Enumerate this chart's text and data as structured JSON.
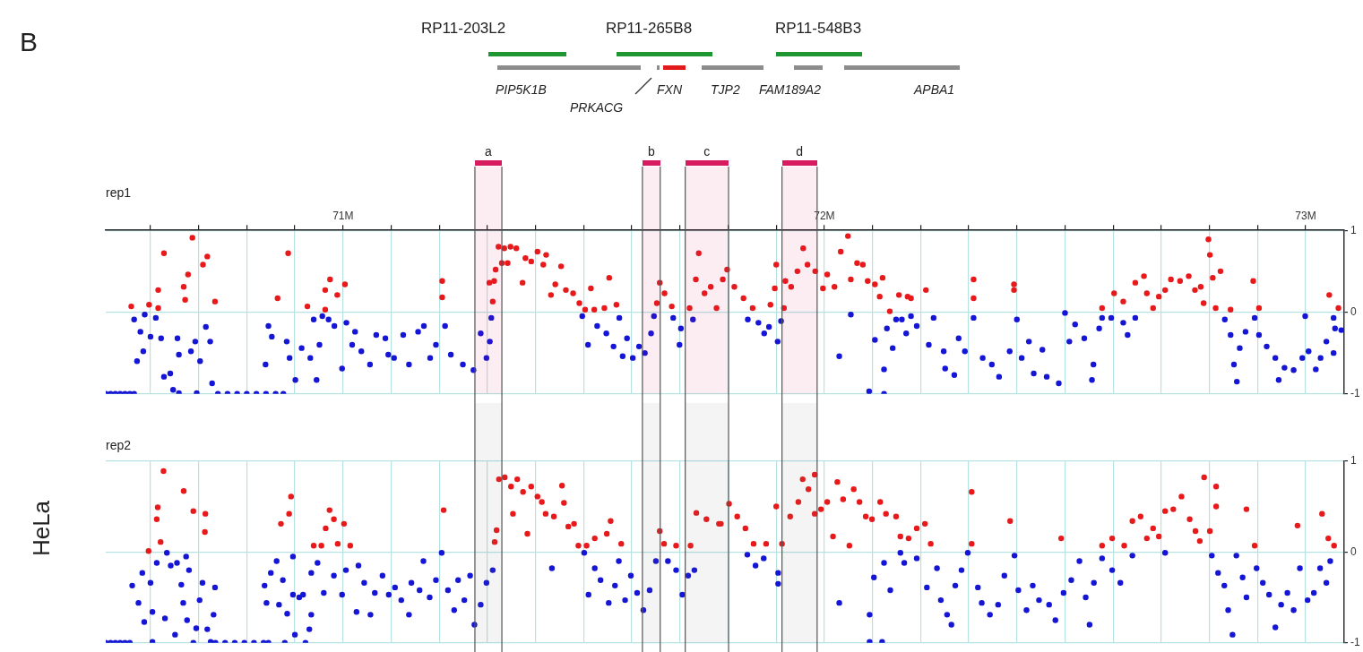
{
  "chart_data": [
    {
      "type": "scatter",
      "title": "rep1",
      "ylabel": "HeLa",
      "marker": "circle",
      "grid": true,
      "annotations": [
        "B",
        "RP11-203L2",
        "RP11-265B8",
        "RP11-548B3",
        "PIP5K1B",
        "PRKACG",
        "FXN",
        "TJP2",
        "FAM189A2",
        "APBA1"
      ],
      "xlim": [
        70.507,
        73.08
      ],
      "xticks": [
        {
          "value": 70.6,
          "label": null
        },
        {
          "value": 70.7,
          "label": null
        },
        {
          "value": 70.8,
          "label": null
        },
        {
          "value": 70.9,
          "label": null
        },
        {
          "value": 71,
          "label": "71M"
        },
        {
          "value": 71.1,
          "label": null
        },
        {
          "value": 71.2,
          "label": null
        },
        {
          "value": 71.3,
          "label": null
        },
        {
          "value": 71.4,
          "label": null
        },
        {
          "value": 71.5,
          "label": null
        },
        {
          "value": 71.6,
          "label": null
        },
        {
          "value": 71.7,
          "label": null
        },
        {
          "value": 71.8,
          "label": null
        },
        {
          "value": 71.9,
          "label": null
        },
        {
          "value": 72,
          "label": "72M"
        },
        {
          "value": 72.1,
          "label": null
        },
        {
          "value": 72.2,
          "label": null
        },
        {
          "value": 72.3,
          "label": null
        },
        {
          "value": 72.4,
          "label": null
        },
        {
          "value": 72.5,
          "label": null
        },
        {
          "value": 72.6,
          "label": null
        },
        {
          "value": 72.7,
          "label": null
        },
        {
          "value": 72.8,
          "label": null
        },
        {
          "value": 72.9,
          "label": null
        },
        {
          "value": 73,
          "label": "73M"
        }
      ],
      "ylim": [
        -1,
        1
      ],
      "yticks": [
        -1,
        0,
        1
      ],
      "bands": [
        {
          "axis": "x",
          "from": 71.274,
          "to": 71.33,
          "label": "a",
          "color": "#d81b60"
        },
        {
          "axis": "x",
          "from": 71.622,
          "to": 71.659,
          "label": "b",
          "color": "#d81b60"
        },
        {
          "axis": "x",
          "from": 71.711,
          "to": 71.801,
          "label": "c",
          "color": "#d81b60"
        },
        {
          "axis": "x",
          "from": 71.912,
          "to": 71.985,
          "label": "d",
          "color": "#d81b60"
        }
      ],
      "series": [
        {
          "color": "#e8191b",
          "x": [
            70.56,
            70.597,
            70.616,
            70.616,
            70.628,
            70.669,
            70.672,
            70.678,
            70.687,
            70.709,
            70.718,
            70.734,
            70.864,
            70.886,
            70.926,
            70.963,
            70.963,
            70.973,
            70.988,
            71.004,
            71.206,
            71.206,
            71.311,
            71.314,
            71.317,
            71.33,
            71.304,
            71.323,
            71.335,
            71.348,
            71.36,
            71.342,
            71.373,
            71.379,
            71.391,
            71.404,
            71.416,
            71.422,
            71.432,
            71.441,
            71.453,
            71.463,
            71.478,
            71.491,
            71.503,
            71.515,
            71.522,
            71.543,
            71.553,
            71.568,
            71.658,
            71.652,
            71.668,
            71.683,
            71.72,
            71.733,
            71.739,
            71.751,
            71.764,
            71.776,
            71.789,
            71.798,
            71.813,
            71.832,
            71.851,
            71.888,
            71.897,
            71.9,
            71.916,
            71.919,
            71.931,
            71.944,
            71.956,
            71.965,
            71.981,
            71.997,
            72.006,
            72.021,
            72.034,
            72.049,
            72.055,
            72.068,
            72.08,
            72.09,
            72.105,
            72.115,
            72.121,
            72.136,
            72.155,
            72.173,
            72.18,
            72.211,
            72.31,
            72.31,
            72.394,
            72.394,
            72.577,
            72.602,
            72.621,
            72.646,
            72.664,
            72.67,
            72.683,
            72.695,
            72.708,
            72.72,
            72.739,
            72.757,
            72.77,
            72.782,
            72.788,
            72.798,
            72.801,
            72.807,
            72.813,
            72.823,
            72.844,
            72.891,
            72.903,
            73.049,
            73.068
          ],
          "values": [
            0.07,
            0.09,
            0.05,
            0.27,
            0.72,
            0.31,
            0.15,
            0.46,
            0.91,
            0.58,
            0.68,
            0.13,
            0.17,
            0.72,
            0.07,
            0.03,
            0.27,
            0.4,
            0.21,
            0.34,
            0.38,
            0.18,
            0.13,
            0.38,
            0.52,
            0.6,
            0.36,
            0.8,
            0.78,
            0.8,
            0.78,
            0.6,
            0.36,
            0.66,
            0.62,
            0.74,
            0.58,
            0.7,
            0.21,
            0.34,
            0.56,
            0.27,
            0.23,
            0.11,
            0.03,
            0.29,
            0.03,
            0.05,
            0.42,
            0.09,
            0.36,
            0.11,
            0.23,
            0.07,
            0.05,
            0.4,
            0.72,
            0.23,
            0.31,
            0.05,
            0.4,
            0.52,
            0.31,
            0.17,
            0.05,
            0.09,
            0.29,
            0.58,
            0.05,
            0.38,
            0.31,
            0.5,
            0.78,
            0.58,
            0.5,
            0.29,
            0.46,
            0.31,
            0.74,
            0.93,
            0.4,
            0.6,
            0.58,
            0.38,
            0.34,
            0.19,
            0.42,
            0.01,
            0.21,
            0.19,
            0.17,
            0.27,
            0.4,
            0.17,
            0.34,
            0.27,
            0.05,
            0.23,
            0.13,
            0.36,
            0.44,
            0.23,
            0.05,
            0.19,
            0.27,
            0.4,
            0.38,
            0.44,
            0.27,
            0.31,
            0.11,
            0.89,
            0.7,
            0.42,
            0.05,
            0.5,
            0.03,
            0.38,
            0.05,
            0.21,
            0.05
          ]
        },
        {
          "color": "#1515d6",
          "x": [
            70.507,
            70.517,
            70.527,
            70.537,
            70.547,
            70.557,
            70.566,
            70.566,
            70.588,
            70.611,
            70.579,
            70.6,
            70.622,
            70.572,
            70.585,
            70.628,
            70.641,
            70.647,
            70.656,
            70.659,
            70.684,
            70.693,
            70.703,
            70.715,
            70.724,
            70.728,
            70.659,
            70.696,
            70.74,
            70.76,
            70.78,
            70.8,
            70.82,
            70.84,
            70.86,
            70.876,
            70.845,
            70.852,
            70.839,
            70.883,
            70.889,
            70.901,
            70.914,
            70.932,
            70.945,
            70.951,
            70.939,
            70.957,
            70.97,
            70.982,
            70.998,
            71.007,
            71.025,
            71.019,
            71.038,
            71.056,
            71.069,
            71.088,
            71.094,
            71.106,
            71.125,
            71.137,
            71.156,
            71.168,
            71.181,
            71.193,
            71.212,
            71.224,
            71.249,
            71.271,
            71.286,
            71.305,
            71.308,
            71.298,
            71.497,
            71.509,
            71.528,
            71.547,
            71.562,
            71.574,
            71.581,
            71.59,
            71.602,
            71.615,
            71.627,
            71.64,
            71.646,
            71.686,
            71.699,
            71.702,
            71.727,
            71.841,
            71.863,
            71.875,
            71.885,
            71.903,
            71.91,
            72.031,
            72.055,
            72.093,
            72.124,
            72.105,
            72.124,
            72.13,
            72.142,
            72.149,
            72.17,
            72.18,
            72.161,
            72.192,
            72.217,
            72.227,
            72.248,
            72.251,
            72.27,
            72.279,
            72.292,
            72.31,
            72.329,
            72.348,
            72.363,
            72.385,
            72.4,
            72.41,
            72.425,
            72.435,
            72.453,
            72.462,
            72.487,
            72.5,
            72.509,
            72.521,
            72.54,
            72.556,
            72.559,
            72.571,
            72.577,
            72.596,
            72.621,
            72.63,
            72.646,
            72.832,
            72.844,
            72.851,
            72.857,
            72.863,
            72.875,
            72.894,
            72.903,
            72.919,
            72.937,
            72.944,
            72.956,
            72.975,
            72.993,
            72.999,
            73.006,
            73.021,
            73.031,
            73.043,
            73.058,
            73.061,
            73.074,
            73.058
          ],
          "values": [
            -1,
            -1,
            -1,
            -1,
            -1,
            -1,
            -1,
            -0.09,
            -0.03,
            -0.07,
            -0.24,
            -0.3,
            -0.32,
            -0.6,
            -0.48,
            -0.79,
            -0.75,
            -0.95,
            -0.32,
            -0.52,
            -0.48,
            -0.36,
            -0.6,
            -0.18,
            -0.36,
            -0.87,
            -0.99,
            -0.99,
            -1,
            -1,
            -1,
            -1,
            -1,
            -1,
            -1,
            -1,
            -0.17,
            -0.3,
            -0.64,
            -0.36,
            -0.56,
            -0.83,
            -0.44,
            -0.56,
            -0.83,
            -0.4,
            -0.09,
            -0.05,
            -0.09,
            -0.17,
            -0.69,
            -0.13,
            -0.24,
            -0.4,
            -0.48,
            -0.64,
            -0.28,
            -0.32,
            -0.52,
            -0.56,
            -0.28,
            -0.64,
            -0.24,
            -0.17,
            -0.56,
            -0.4,
            -0.17,
            -0.52,
            -0.64,
            -0.71,
            -0.26,
            -0.36,
            -0.07,
            -0.56,
            -0.05,
            -0.4,
            -0.17,
            -0.26,
            -0.42,
            -0.07,
            -0.54,
            -0.32,
            -0.56,
            -0.42,
            -0.5,
            -0.26,
            -0.05,
            -0.07,
            -0.4,
            -0.2,
            -0.09,
            -0.09,
            -0.13,
            -0.26,
            -0.18,
            -0.36,
            -0.11,
            -0.54,
            -0.03,
            -0.97,
            -1,
            -0.34,
            -0.7,
            -0.2,
            -0.44,
            -0.09,
            -0.26,
            -0.05,
            -0.09,
            -0.17,
            -0.4,
            -0.07,
            -0.48,
            -0.69,
            -0.77,
            -0.32,
            -0.48,
            -0.07,
            -0.56,
            -0.64,
            -0.79,
            -0.48,
            -0.09,
            -0.56,
            -0.36,
            -0.75,
            -0.46,
            -0.79,
            -0.87,
            -0.01,
            -0.36,
            -0.15,
            -0.32,
            -0.83,
            -0.64,
            -0.2,
            -0.07,
            -0.07,
            -0.13,
            -0.28,
            -0.07,
            -0.09,
            -0.28,
            -0.64,
            -0.85,
            -0.44,
            -0.24,
            -0.07,
            -0.28,
            -0.42,
            -0.56,
            -0.83,
            -0.68,
            -0.71,
            -0.56,
            -0.05,
            -0.48,
            -0.7,
            -0.56,
            -0.36,
            -0.5,
            -0.2,
            -0.22,
            -0.07
          ]
        }
      ]
    },
    {
      "type": "scatter",
      "title": "rep2",
      "marker": "circle",
      "grid": true,
      "tick_labels": "y",
      "xlim": [
        70.507,
        73.08
      ],
      "xticks": [
        {
          "value": 70.6,
          "label": null
        },
        {
          "value": 70.7,
          "label": null
        },
        {
          "value": 70.8,
          "label": null
        },
        {
          "value": 70.9,
          "label": null
        },
        {
          "value": 71,
          "label": null
        },
        {
          "value": 71.1,
          "label": null
        },
        {
          "value": 71.2,
          "label": null
        },
        {
          "value": 71.3,
          "label": null
        },
        {
          "value": 71.4,
          "label": null
        },
        {
          "value": 71.5,
          "label": null
        },
        {
          "value": 71.6,
          "label": null
        },
        {
          "value": 71.7,
          "label": null
        },
        {
          "value": 71.8,
          "label": null
        },
        {
          "value": 71.9,
          "label": null
        },
        {
          "value": 72,
          "label": null
        },
        {
          "value": 72.1,
          "label": null
        },
        {
          "value": 72.2,
          "label": null
        },
        {
          "value": 72.3,
          "label": null
        },
        {
          "value": 72.4,
          "label": null
        },
        {
          "value": 72.5,
          "label": null
        },
        {
          "value": 72.6,
          "label": null
        },
        {
          "value": 72.7,
          "label": null
        },
        {
          "value": 72.8,
          "label": null
        },
        {
          "value": 72.9,
          "label": null
        },
        {
          "value": 73,
          "label": null
        }
      ],
      "ylim": [
        -1,
        1
      ],
      "yticks": [
        -1,
        0,
        1
      ],
      "bands": [
        {
          "axis": "x",
          "from": 71.274,
          "to": 71.33
        },
        {
          "axis": "x",
          "from": 71.622,
          "to": 71.659
        },
        {
          "axis": "x",
          "from": 71.711,
          "to": 71.801
        },
        {
          "axis": "x",
          "from": 71.912,
          "to": 71.985
        }
      ],
      "series": [
        {
          "color": "#e8191b",
          "x": [
            70.596,
            70.613,
            70.615,
            70.621,
            70.627,
            70.669,
            70.689,
            70.714,
            70.713,
            70.871,
            70.888,
            70.892,
            70.939,
            70.955,
            70.964,
            70.972,
            70.981,
            70.989,
            71.002,
            71.015,
            71.209,
            71.315,
            71.319,
            71.324,
            71.336,
            71.349,
            71.353,
            71.362,
            71.374,
            71.383,
            71.391,
            71.404,
            71.413,
            71.421,
            71.438,
            71.455,
            71.459,
            71.468,
            71.48,
            71.489,
            71.506,
            71.523,
            71.548,
            71.556,
            71.578,
            71.658,
            71.667,
            71.692,
            71.722,
            71.734,
            71.755,
            71.781,
            71.785,
            71.802,
            71.819,
            71.836,
            71.853,
            71.879,
            71.9,
            71.912,
            71.929,
            71.946,
            71.955,
            71.967,
            71.98,
            71.98,
            71.993,
            72.006,
            72.018,
            72.027,
            72.039,
            72.052,
            72.061,
            72.073,
            72.086,
            72.099,
            72.116,
            72.128,
            72.149,
            72.158,
            72.175,
            72.192,
            72.209,
            72.221,
            72.306,
            72.306,
            72.386,
            72.492,
            72.577,
            72.598,
            72.623,
            72.64,
            72.657,
            72.67,
            72.683,
            72.695,
            72.708,
            72.725,
            72.742,
            72.759,
            72.771,
            72.78,
            72.789,
            72.801,
            72.814,
            72.814,
            72.877,
            72.894,
            72.983,
            73.034,
            73.047,
            73.059
          ],
          "values": [
            0.01,
            0.36,
            0.49,
            0.11,
            0.89,
            0.67,
            0.45,
            0.42,
            0.22,
            0.31,
            0.42,
            0.61,
            0.07,
            0.07,
            0.26,
            0.46,
            0.36,
            0.09,
            0.31,
            0.07,
            0.46,
            0.11,
            0.24,
            0.8,
            0.82,
            0.72,
            0.42,
            0.8,
            0.66,
            0.2,
            0.72,
            0.61,
            0.55,
            0.42,
            0.39,
            0.73,
            0.54,
            0.28,
            0.31,
            0.07,
            0.07,
            0.15,
            0.2,
            0.34,
            0.09,
            0.23,
            0.09,
            0.07,
            0.07,
            0.43,
            0.36,
            0.31,
            0.31,
            0.53,
            0.39,
            0.26,
            0.09,
            0.09,
            0.5,
            0.09,
            0.39,
            0.55,
            0.8,
            0.69,
            0.85,
            0.42,
            0.47,
            0.55,
            0.17,
            0.77,
            0.58,
            0.07,
            0.69,
            0.55,
            0.39,
            0.36,
            0.55,
            0.42,
            0.39,
            0.17,
            0.15,
            0.26,
            0.31,
            0.09,
            0.66,
            0.09,
            0.34,
            0.15,
            0.07,
            0.15,
            0.07,
            0.34,
            0.39,
            0.15,
            0.26,
            0.17,
            0.45,
            0.47,
            0.61,
            0.36,
            0.23,
            0.12,
            0.82,
            0.23,
            0.72,
            0.5,
            0.47,
            0.07,
            0.29,
            0.42,
            0.15,
            0.07
          ]
        },
        {
          "color": "#1515d6",
          "x": [
            70.507,
            70.517,
            70.527,
            70.537,
            70.547,
            70.557,
            70.562,
            70.575,
            70.587,
            70.583,
            70.6,
            70.604,
            70.613,
            70.604,
            70.63,
            70.634,
            70.642,
            70.651,
            70.655,
            70.664,
            70.668,
            70.674,
            70.68,
            70.676,
            70.689,
            70.695,
            70.702,
            70.708,
            70.718,
            70.725,
            70.731,
            70.734,
            70.735,
            70.755,
            70.775,
            70.795,
            70.815,
            70.835,
            70.845,
            70.837,
            70.841,
            70.85,
            70.862,
            70.867,
            70.875,
            70.879,
            70.884,
            70.896,
            70.896,
            70.9,
            70.909,
            70.917,
            70.922,
            70.93,
            70.934,
            70.934,
            70.947,
            70.96,
            70.981,
            70.998,
            71.006,
            71.028,
            71.032,
            71.044,
            71.057,
            71.066,
            71.082,
            71.095,
            71.108,
            71.121,
            71.137,
            71.142,
            71.159,
            71.167,
            71.18,
            71.193,
            71.205,
            71.218,
            71.231,
            71.239,
            71.252,
            71.264,
            71.273,
            71.286,
            71.298,
            71.311,
            71.434,
            71.501,
            71.51,
            71.523,
            71.535,
            71.552,
            71.565,
            71.573,
            71.586,
            71.598,
            71.611,
            71.624,
            71.637,
            71.65,
            71.675,
            71.692,
            71.705,
            71.717,
            71.73,
            71.84,
            71.857,
            71.874,
            71.904,
            71.904,
            72.031,
            72.094,
            72.094,
            72.12,
            72.103,
            72.124,
            72.137,
            72.158,
            72.166,
            72.192,
            72.213,
            72.234,
            72.242,
            72.255,
            72.264,
            72.272,
            72.285,
            72.298,
            72.319,
            72.327,
            72.344,
            72.361,
            72.374,
            72.395,
            72.403,
            72.42,
            72.433,
            72.446,
            72.467,
            72.48,
            72.497,
            72.513,
            72.53,
            72.543,
            72.551,
            72.56,
            72.577,
            72.598,
            72.615,
            72.64,
            72.708,
            72.805,
            72.818,
            72.831,
            72.839,
            72.848,
            72.856,
            72.869,
            72.877,
            72.898,
            72.911,
            72.924,
            72.937,
            72.949,
            72.962,
            72.975,
            72.988,
            73.004,
            73.017,
            73.03,
            73.043,
            73.051
          ],
          "values": [
            -1,
            -1,
            -1,
            -1,
            -1,
            -1,
            -0.37,
            -0.56,
            -0.77,
            -0.23,
            -0.34,
            -0.66,
            -0.12,
            -0.99,
            -0.73,
            -0.01,
            -0.15,
            -0.91,
            -0.12,
            -0.36,
            -0.56,
            -0.05,
            -0.2,
            -0.75,
            -1,
            -0.84,
            -0.53,
            -0.34,
            -0.85,
            -0.99,
            -0.69,
            -0.39,
            -1,
            -1,
            -1,
            -1,
            -1,
            -1,
            -1,
            -0.37,
            -0.56,
            -0.23,
            -0.1,
            -0.58,
            -0.31,
            -1,
            -0.68,
            -0.05,
            -0.47,
            -0.91,
            -0.5,
            -0.47,
            -1,
            -0.85,
            -0.69,
            -0.23,
            -0.12,
            -0.45,
            -0.26,
            -0.47,
            -0.2,
            -0.66,
            -0.15,
            -0.34,
            -0.69,
            -0.45,
            -0.26,
            -0.47,
            -0.39,
            -0.53,
            -0.69,
            -0.34,
            -0.42,
            -0.1,
            -0.5,
            -0.31,
            -0.01,
            -0.42,
            -0.64,
            -0.31,
            -0.53,
            -0.26,
            -0.8,
            -0.58,
            -0.34,
            -0.2,
            -0.18,
            -0.01,
            -0.47,
            -0.18,
            -0.31,
            -0.56,
            -0.37,
            -0.1,
            -0.53,
            -0.26,
            -0.45,
            -0.64,
            -0.42,
            -0.1,
            -0.1,
            -0.2,
            -0.47,
            -0.26,
            -0.2,
            -0.03,
            -0.15,
            -0.07,
            -0.23,
            -0.35,
            -0.56,
            -0.69,
            -0.99,
            -0.99,
            -0.28,
            -0.12,
            -0.42,
            -0.01,
            -0.12,
            -0.07,
            -0.39,
            -0.18,
            -0.53,
            -0.69,
            -0.8,
            -0.37,
            -0.2,
            -0.01,
            -0.39,
            -0.56,
            -0.69,
            -0.58,
            -0.26,
            -0.04,
            -0.42,
            -0.64,
            -0.37,
            -0.53,
            -0.58,
            -0.75,
            -0.45,
            -0.31,
            -0.1,
            -0.5,
            -0.8,
            -0.34,
            -0.07,
            -0.2,
            -0.34,
            -0.04,
            -0.01,
            -0.04,
            -0.23,
            -0.37,
            -0.64,
            -0.91,
            -0.04,
            -0.28,
            -0.5,
            -0.18,
            -0.34,
            -0.47,
            -0.83,
            -0.58,
            -0.45,
            -0.64,
            -0.18,
            -0.53,
            -0.45,
            -0.18,
            -0.34,
            -0.1
          ]
        }
      ]
    }
  ]
}
